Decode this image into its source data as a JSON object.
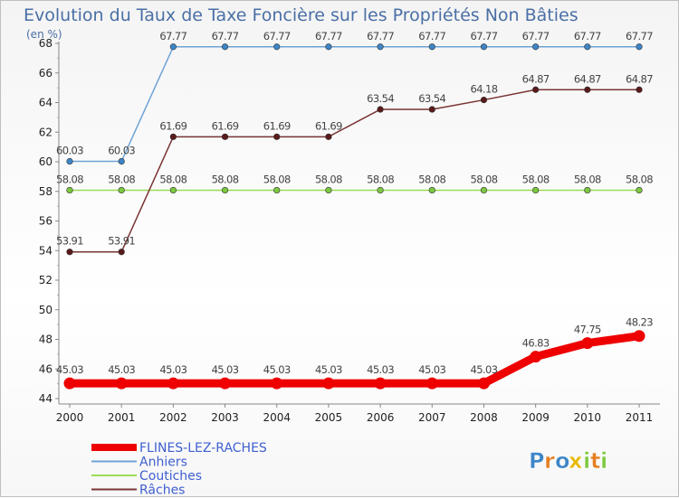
{
  "chart_data": {
    "type": "line",
    "title": "Evolution du Taux de Taxe Foncière sur les Propriétés Non Bâties",
    "ylabel": "(en %)",
    "xlabel": "",
    "ylim": [
      44,
      68
    ],
    "yticks": [
      44,
      46,
      48,
      50,
      52,
      54,
      56,
      58,
      60,
      62,
      64,
      66,
      68
    ],
    "categories": [
      "2000",
      "2001",
      "2002",
      "2003",
      "2004",
      "2005",
      "2006",
      "2007",
      "2008",
      "2009",
      "2010",
      "2011"
    ],
    "series": [
      {
        "name": "FLINES-LEZ-RACHES",
        "color": "#ee0000",
        "values": [
          45.03,
          45.03,
          45.03,
          45.03,
          45.03,
          45.03,
          45.03,
          45.03,
          45.03,
          46.83,
          47.75,
          48.23
        ],
        "labels": [
          "45.03",
          "45.03",
          "45.03",
          "45.03",
          "45.03",
          "45.03",
          "45.03",
          "45.03",
          "45.03",
          "46.83",
          "47.75",
          "48.23"
        ]
      },
      {
        "name": "Anhiers",
        "color": "#6fa3d6",
        "point_color": "#3d85c6",
        "values": [
          60.03,
          60.03,
          67.77,
          67.77,
          67.77,
          67.77,
          67.77,
          67.77,
          67.77,
          67.77,
          67.77,
          67.77
        ],
        "labels": [
          "60.03",
          "60.03",
          "67.77",
          "67.77",
          "67.77",
          "67.77",
          "67.77",
          "67.77",
          "67.77",
          "67.77",
          "67.77",
          "67.77"
        ]
      },
      {
        "name": "Coutiches",
        "color": "#99dd55",
        "point_color": "#7cc940",
        "values": [
          58.08,
          58.08,
          58.08,
          58.08,
          58.08,
          58.08,
          58.08,
          58.08,
          58.08,
          58.08,
          58.08,
          58.08
        ],
        "labels": [
          "58.08",
          "58.08",
          "58.08",
          "58.08",
          "58.08",
          "58.08",
          "58.08",
          "58.08",
          "58.08",
          "58.08",
          "58.08",
          "58.08"
        ]
      },
      {
        "name": "Râches",
        "color": "#7a3434",
        "point_color": "#5a1a1a",
        "values": [
          53.91,
          53.91,
          61.69,
          61.69,
          61.69,
          61.69,
          63.54,
          63.54,
          64.18,
          64.87,
          64.87,
          64.87
        ],
        "labels": [
          "53.91",
          "53.91",
          "61.69",
          "61.69",
          "61.69",
          "61.69",
          "63.54",
          "63.54",
          "64.18",
          "64.87",
          "64.87",
          "64.87"
        ]
      }
    ],
    "grid": false,
    "legend": "bottom-left"
  },
  "watermark": {
    "letters": [
      "P",
      "r",
      "o",
      "x",
      "i",
      "t",
      "i"
    ],
    "colors": [
      "#3d85c6",
      "#e67e22",
      "#3d85c6",
      "#e6b800",
      "#7cc940",
      "#e67e22",
      "#7cc940"
    ]
  }
}
